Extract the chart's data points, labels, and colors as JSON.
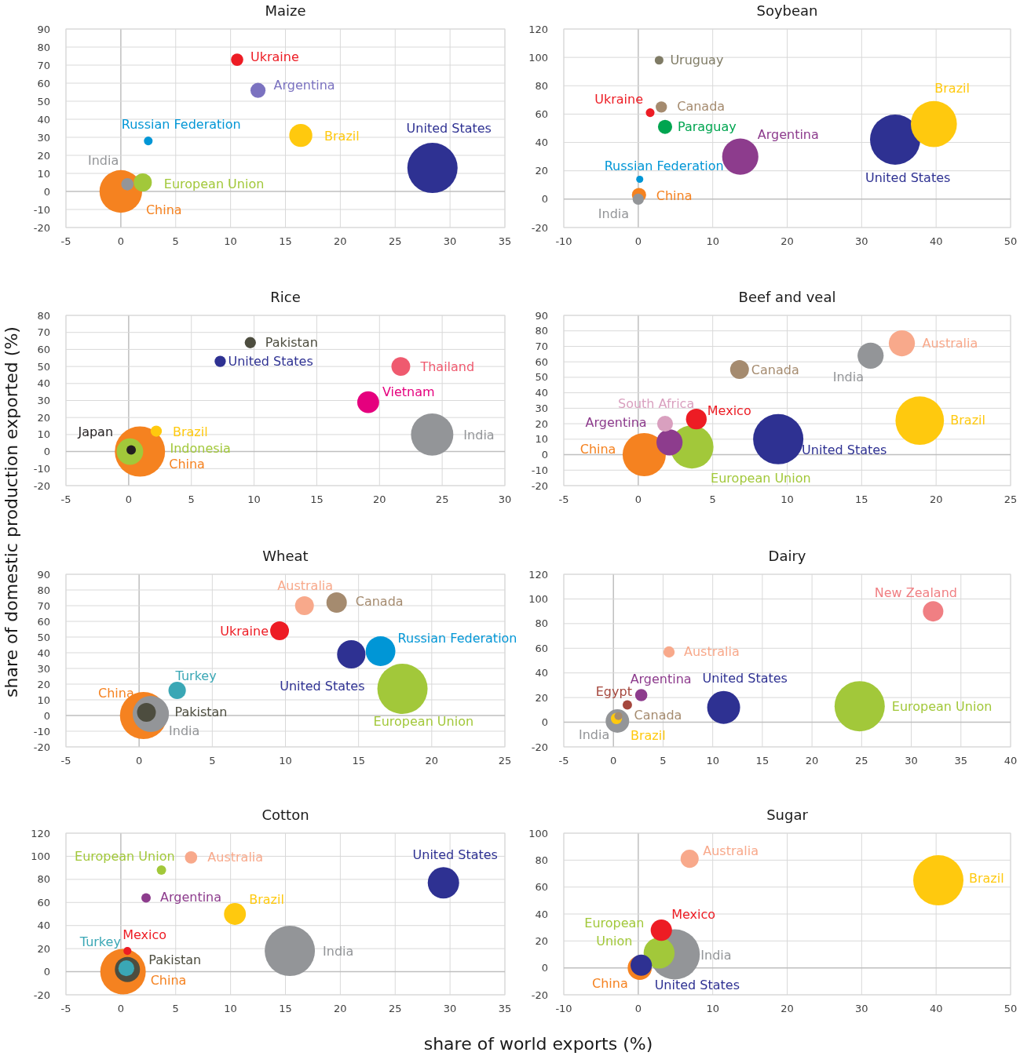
{
  "chart_data": [
    {
      "type": "bubble",
      "title": "Maize",
      "ylabel": "share of domestic production exported (%)",
      "xlim": [
        -5,
        35
      ],
      "xticks": [
        -5,
        0,
        5,
        10,
        15,
        20,
        25,
        30,
        35
      ],
      "ylim": [
        -20,
        90
      ],
      "yticks": [
        -20,
        -10,
        0,
        10,
        20,
        30,
        40,
        50,
        60,
        70,
        80,
        90
      ],
      "grid": true,
      "series": [
        {
          "name": "United States",
          "color": "#2e3192",
          "x": [
            28.4
          ],
          "values": [
            13
          ],
          "sizes": [
            1
          ]
        },
        {
          "name": "China",
          "color": "#f58220",
          "x": [
            0
          ],
          "values": [
            0
          ],
          "sizes": [
            0.72
          ]
        },
        {
          "name": "Brazil",
          "color": "#ffc90e",
          "x": [
            16.4
          ],
          "values": [
            31
          ],
          "sizes": [
            0.21
          ]
        },
        {
          "name": "European Union",
          "color": "#a2c83a",
          "x": [
            2
          ],
          "values": [
            5
          ],
          "sizes": [
            0.13
          ]
        },
        {
          "name": "Argentina",
          "color": "#7b72c0",
          "x": [
            12.5
          ],
          "values": [
            56
          ],
          "sizes": [
            0.09
          ]
        },
        {
          "name": "India",
          "color": "#939598",
          "x": [
            0.6
          ],
          "values": [
            4
          ],
          "sizes": [
            0.06
          ]
        },
        {
          "name": "Ukraine",
          "color": "#ed1c24",
          "x": [
            10.6
          ],
          "values": [
            73
          ],
          "sizes": [
            0.06
          ]
        },
        {
          "name": "Russian Federation",
          "color": "#0096d6",
          "x": [
            2.5
          ],
          "values": [
            28
          ],
          "sizes": [
            0.03
          ]
        }
      ]
    },
    {
      "type": "bubble",
      "title": "Soybean",
      "xlim": [
        -10,
        50
      ],
      "xticks": [
        -10,
        0,
        10,
        20,
        30,
        40,
        50
      ],
      "ylim": [
        -20,
        120
      ],
      "yticks": [
        -20,
        0,
        20,
        40,
        60,
        80,
        100,
        120
      ],
      "grid": true,
      "series": [
        {
          "name": "United States",
          "color": "#2e3192",
          "x": [
            34.5
          ],
          "values": [
            42
          ],
          "sizes": [
            1
          ]
        },
        {
          "name": "Brazil",
          "color": "#ffc90e",
          "x": [
            39.7
          ],
          "values": [
            53
          ],
          "sizes": [
            0.84
          ]
        },
        {
          "name": "Argentina",
          "color": "#8d3c8d",
          "x": [
            13.7
          ],
          "values": [
            30
          ],
          "sizes": [
            0.52
          ]
        },
        {
          "name": "Paraguay",
          "color": "#00a550",
          "x": [
            3.6
          ],
          "values": [
            51
          ],
          "sizes": [
            0.08
          ]
        },
        {
          "name": "China",
          "color": "#f58220",
          "x": [
            0.1
          ],
          "values": [
            3
          ],
          "sizes": [
            0.08
          ]
        },
        {
          "name": "Canada",
          "color": "#a58b6f",
          "x": [
            3.1
          ],
          "values": [
            65
          ],
          "sizes": [
            0.05
          ]
        },
        {
          "name": "India",
          "color": "#939598",
          "x": [
            0
          ],
          "values": [
            0
          ],
          "sizes": [
            0.05
          ]
        },
        {
          "name": "Uruguay",
          "color": "#7f7b65",
          "x": [
            2.8
          ],
          "values": [
            98
          ],
          "sizes": [
            0.03
          ]
        },
        {
          "name": "Ukraine",
          "color": "#ed1c24",
          "x": [
            1.6
          ],
          "values": [
            61
          ],
          "sizes": [
            0.03
          ]
        },
        {
          "name": "Russian Federation",
          "color": "#0096d6",
          "x": [
            0.2
          ],
          "values": [
            14
          ],
          "sizes": [
            0.02
          ]
        }
      ]
    },
    {
      "type": "bubble",
      "title": "Rice",
      "xlim": [
        -5,
        30
      ],
      "xticks": [
        -5,
        0,
        5,
        10,
        15,
        20,
        25,
        30
      ],
      "ylim": [
        -20,
        80
      ],
      "yticks": [
        -20,
        -10,
        0,
        10,
        20,
        30,
        40,
        50,
        60,
        70,
        80
      ],
      "grid": true,
      "series": [
        {
          "name": "China",
          "color": "#f58220",
          "x": [
            0.9
          ],
          "values": [
            0
          ],
          "sizes": [
            1
          ]
        },
        {
          "name": "India",
          "color": "#939598",
          "x": [
            24.2
          ],
          "values": [
            10
          ],
          "sizes": [
            0.71
          ]
        },
        {
          "name": "Indonesia",
          "color": "#a2c83a",
          "x": [
            0.1
          ],
          "values": [
            0
          ],
          "sizes": [
            0.28
          ]
        },
        {
          "name": "Vietnam",
          "color": "#e5007e",
          "x": [
            19.1
          ],
          "values": [
            29
          ],
          "sizes": [
            0.19
          ]
        },
        {
          "name": "Thailand",
          "color": "#ef5a6f",
          "x": [
            21.7
          ],
          "values": [
            50
          ],
          "sizes": [
            0.14
          ]
        },
        {
          "name": "Pakistan",
          "color": "#4d4d3f",
          "x": [
            9.7
          ],
          "values": [
            64
          ],
          "sizes": [
            0.05
          ]
        },
        {
          "name": "United States",
          "color": "#2e3192",
          "x": [
            7.3
          ],
          "values": [
            53
          ],
          "sizes": [
            0.05
          ]
        },
        {
          "name": "Brazil",
          "color": "#ffc90e",
          "x": [
            2.2
          ],
          "values": [
            12
          ],
          "sizes": [
            0.05
          ]
        },
        {
          "name": "Japan",
          "color": "#231f20",
          "x": [
            0.2
          ],
          "values": [
            1
          ],
          "sizes": [
            0.035
          ]
        }
      ]
    },
    {
      "type": "bubble",
      "title": "Beef and veal",
      "xlim": [
        -5,
        25
      ],
      "xticks": [
        -5,
        0,
        5,
        10,
        15,
        20,
        25
      ],
      "ylim": [
        -20,
        90
      ],
      "yticks": [
        -20,
        -10,
        0,
        10,
        20,
        30,
        40,
        50,
        60,
        70,
        80,
        90
      ],
      "grid": true,
      "series": [
        {
          "name": "United States",
          "color": "#2e3192",
          "x": [
            9.4
          ],
          "values": [
            10
          ],
          "sizes": [
            1
          ]
        },
        {
          "name": "Brazil",
          "color": "#ffc90e",
          "x": [
            18.9
          ],
          "values": [
            22
          ],
          "sizes": [
            0.93
          ]
        },
        {
          "name": "China",
          "color": "#f58220",
          "x": [
            0.4
          ],
          "values": [
            0
          ],
          "sizes": [
            0.74
          ]
        },
        {
          "name": "European Union",
          "color": "#a2c83a",
          "x": [
            3.6
          ],
          "values": [
            5
          ],
          "sizes": [
            0.74
          ]
        },
        {
          "name": "Australia",
          "color": "#f8a98b",
          "x": [
            17.7
          ],
          "values": [
            72
          ],
          "sizes": [
            0.27
          ]
        },
        {
          "name": "India",
          "color": "#939598",
          "x": [
            15.6
          ],
          "values": [
            64
          ],
          "sizes": [
            0.27
          ]
        },
        {
          "name": "Argentina",
          "color": "#8d3c8d",
          "x": [
            2.1
          ],
          "values": [
            8
          ],
          "sizes": [
            0.27
          ]
        },
        {
          "name": "Mexico",
          "color": "#ed1c24",
          "x": [
            3.9
          ],
          "values": [
            23
          ],
          "sizes": [
            0.17
          ]
        },
        {
          "name": "Canada",
          "color": "#a58b6f",
          "x": [
            6.8
          ],
          "values": [
            55
          ],
          "sizes": [
            0.14
          ]
        },
        {
          "name": "South Africa",
          "color": "#d9a0bf",
          "x": [
            1.8
          ],
          "values": [
            20
          ],
          "sizes": [
            0.1
          ]
        }
      ]
    },
    {
      "type": "bubble",
      "title": "Wheat",
      "xlim": [
        -5,
        25
      ],
      "xticks": [
        -5,
        0,
        5,
        10,
        15,
        20,
        25
      ],
      "ylim": [
        -20,
        90
      ],
      "yticks": [
        -20,
        -10,
        0,
        10,
        20,
        30,
        40,
        50,
        60,
        70,
        80,
        90
      ],
      "grid": true,
      "series": [
        {
          "name": "European Union",
          "color": "#a2c83a",
          "x": [
            18
          ],
          "values": [
            17
          ],
          "sizes": [
            1
          ]
        },
        {
          "name": "China",
          "color": "#f58220",
          "x": [
            0.3
          ],
          "values": [
            0
          ],
          "sizes": [
            0.88
          ]
        },
        {
          "name": "India",
          "color": "#939598",
          "x": [
            0.8
          ],
          "values": [
            1
          ],
          "sizes": [
            0.52
          ]
        },
        {
          "name": "Russian Federation",
          "color": "#0096d6",
          "x": [
            16.5
          ],
          "values": [
            41
          ],
          "sizes": [
            0.35
          ]
        },
        {
          "name": "United States",
          "color": "#2e3192",
          "x": [
            14.5
          ],
          "values": [
            39
          ],
          "sizes": [
            0.32
          ]
        },
        {
          "name": "Canada",
          "color": "#a58b6f",
          "x": [
            13.5
          ],
          "values": [
            72
          ],
          "sizes": [
            0.165
          ]
        },
        {
          "name": "Australia",
          "color": "#f8a98b",
          "x": [
            11.3
          ],
          "values": [
            70
          ],
          "sizes": [
            0.14
          ]
        },
        {
          "name": "Ukraine",
          "color": "#ed1c24",
          "x": [
            9.6
          ],
          "values": [
            54
          ],
          "sizes": [
            0.14
          ]
        },
        {
          "name": "Pakistan",
          "color": "#4d4d3f",
          "x": [
            0.5
          ],
          "values": [
            2
          ],
          "sizes": [
            0.14
          ]
        },
        {
          "name": "Turkey",
          "color": "#3aa7b5",
          "x": [
            2.6
          ],
          "values": [
            16
          ],
          "sizes": [
            0.12
          ]
        }
      ]
    },
    {
      "type": "bubble",
      "title": "Dairy",
      "xlim": [
        -5,
        40
      ],
      "xticks": [
        -5,
        0,
        5,
        10,
        15,
        20,
        25,
        30,
        35,
        40
      ],
      "ylim": [
        -20,
        120
      ],
      "yticks": [
        -20,
        0,
        20,
        40,
        60,
        80,
        100,
        120
      ],
      "grid": true,
      "series": [
        {
          "name": "European Union",
          "color": "#a2c83a",
          "x": [
            24.8
          ],
          "values": [
            13
          ],
          "sizes": [
            1
          ]
        },
        {
          "name": "United States",
          "color": "#2e3192",
          "x": [
            11.1
          ],
          "values": [
            12
          ],
          "sizes": [
            0.43
          ]
        },
        {
          "name": "India",
          "color": "#939598",
          "x": [
            0.4
          ],
          "values": [
            1
          ],
          "sizes": [
            0.22
          ]
        },
        {
          "name": "New Zealand",
          "color": "#f07f83",
          "x": [
            32.2
          ],
          "values": [
            90
          ],
          "sizes": [
            0.165
          ]
        },
        {
          "name": "Argentina",
          "color": "#8d3c8d",
          "x": [
            2.8
          ],
          "values": [
            22
          ],
          "sizes": [
            0.06
          ]
        },
        {
          "name": "Australia",
          "color": "#f8a98b",
          "x": [
            5.6
          ],
          "values": [
            57
          ],
          "sizes": [
            0.05
          ]
        },
        {
          "name": "Brazil",
          "color": "#ffc90e",
          "x": [
            0.3
          ],
          "values": [
            3
          ],
          "sizes": [
            0.05
          ]
        },
        {
          "name": "Egypt",
          "color": "#a5473d",
          "x": [
            1.4
          ],
          "values": [
            14
          ],
          "sizes": [
            0.035
          ]
        },
        {
          "name": "Canada",
          "color": "#a58b6f",
          "x": [
            0.5
          ],
          "values": [
            5
          ],
          "sizes": [
            0.025
          ]
        }
      ]
    },
    {
      "type": "bubble",
      "title": "Cotton",
      "xlabel": "share of world exports (%)",
      "xlim": [
        -5,
        35
      ],
      "xticks": [
        -5,
        0,
        5,
        10,
        15,
        20,
        25,
        30,
        35
      ],
      "ylim": [
        -20,
        120
      ],
      "yticks": [
        -20,
        0,
        20,
        40,
        60,
        80,
        100,
        120
      ],
      "grid": true,
      "series": [
        {
          "name": "India",
          "color": "#939598",
          "x": [
            15.4
          ],
          "values": [
            18
          ],
          "sizes": [
            1
          ]
        },
        {
          "name": "China",
          "color": "#f58220",
          "x": [
            0.2
          ],
          "values": [
            0
          ],
          "sizes": [
            0.82
          ]
        },
        {
          "name": "United States",
          "color": "#2e3192",
          "x": [
            29.4
          ],
          "values": [
            77
          ],
          "sizes": [
            0.39
          ]
        },
        {
          "name": "Pakistan",
          "color": "#4d4d3f",
          "x": [
            0.6
          ],
          "values": [
            2
          ],
          "sizes": [
            0.25
          ]
        },
        {
          "name": "Brazil",
          "color": "#ffc90e",
          "x": [
            10.4
          ],
          "values": [
            50
          ],
          "sizes": [
            0.19
          ]
        },
        {
          "name": "Turkey",
          "color": "#3aa7b5",
          "x": [
            0.5
          ],
          "values": [
            3
          ],
          "sizes": [
            0.1
          ]
        },
        {
          "name": "Australia",
          "color": "#f8a98b",
          "x": [
            6.4
          ],
          "values": [
            99
          ],
          "sizes": [
            0.06
          ]
        },
        {
          "name": "European Union",
          "color": "#a2c83a",
          "x": [
            3.7
          ],
          "values": [
            88
          ],
          "sizes": [
            0.035
          ]
        },
        {
          "name": "Argentina",
          "color": "#8d3c8d",
          "x": [
            2.3
          ],
          "values": [
            64
          ],
          "sizes": [
            0.035
          ]
        },
        {
          "name": "Mexico",
          "color": "#ed1c24",
          "x": [
            0.6
          ],
          "values": [
            18
          ],
          "sizes": [
            0.025
          ]
        }
      ]
    },
    {
      "type": "bubble",
      "title": "Sugar",
      "xlim": [
        -10,
        50
      ],
      "xticks": [
        -10,
        0,
        10,
        20,
        30,
        40,
        50
      ],
      "ylim": [
        -20,
        100
      ],
      "yticks": [
        -20,
        0,
        20,
        40,
        60,
        80,
        100
      ],
      "grid": true,
      "series": [
        {
          "name": "Brazil",
          "color": "#ffc90e",
          "x": [
            40.3
          ],
          "values": [
            65
          ],
          "sizes": [
            1
          ]
        },
        {
          "name": "India",
          "color": "#939598",
          "x": [
            4.9
          ],
          "values": [
            10
          ],
          "sizes": [
            1
          ]
        },
        {
          "name": "European Union",
          "color": "#a2c83a",
          "x": [
            2.8
          ],
          "values": [
            11
          ],
          "sizes": [
            0.38
          ]
        },
        {
          "name": "China",
          "color": "#f58220",
          "x": [
            0.2
          ],
          "values": [
            0
          ],
          "sizes": [
            0.23
          ]
        },
        {
          "name": "Mexico",
          "color": "#ed1c24",
          "x": [
            3.1
          ],
          "values": [
            28
          ],
          "sizes": [
            0.18
          ]
        },
        {
          "name": "United States",
          "color": "#2e3192",
          "x": [
            0.4
          ],
          "values": [
            2
          ],
          "sizes": [
            0.18
          ]
        },
        {
          "name": "Australia",
          "color": "#f8a98b",
          "x": [
            6.9
          ],
          "values": [
            81
          ],
          "sizes": [
            0.13
          ]
        }
      ]
    }
  ]
}
